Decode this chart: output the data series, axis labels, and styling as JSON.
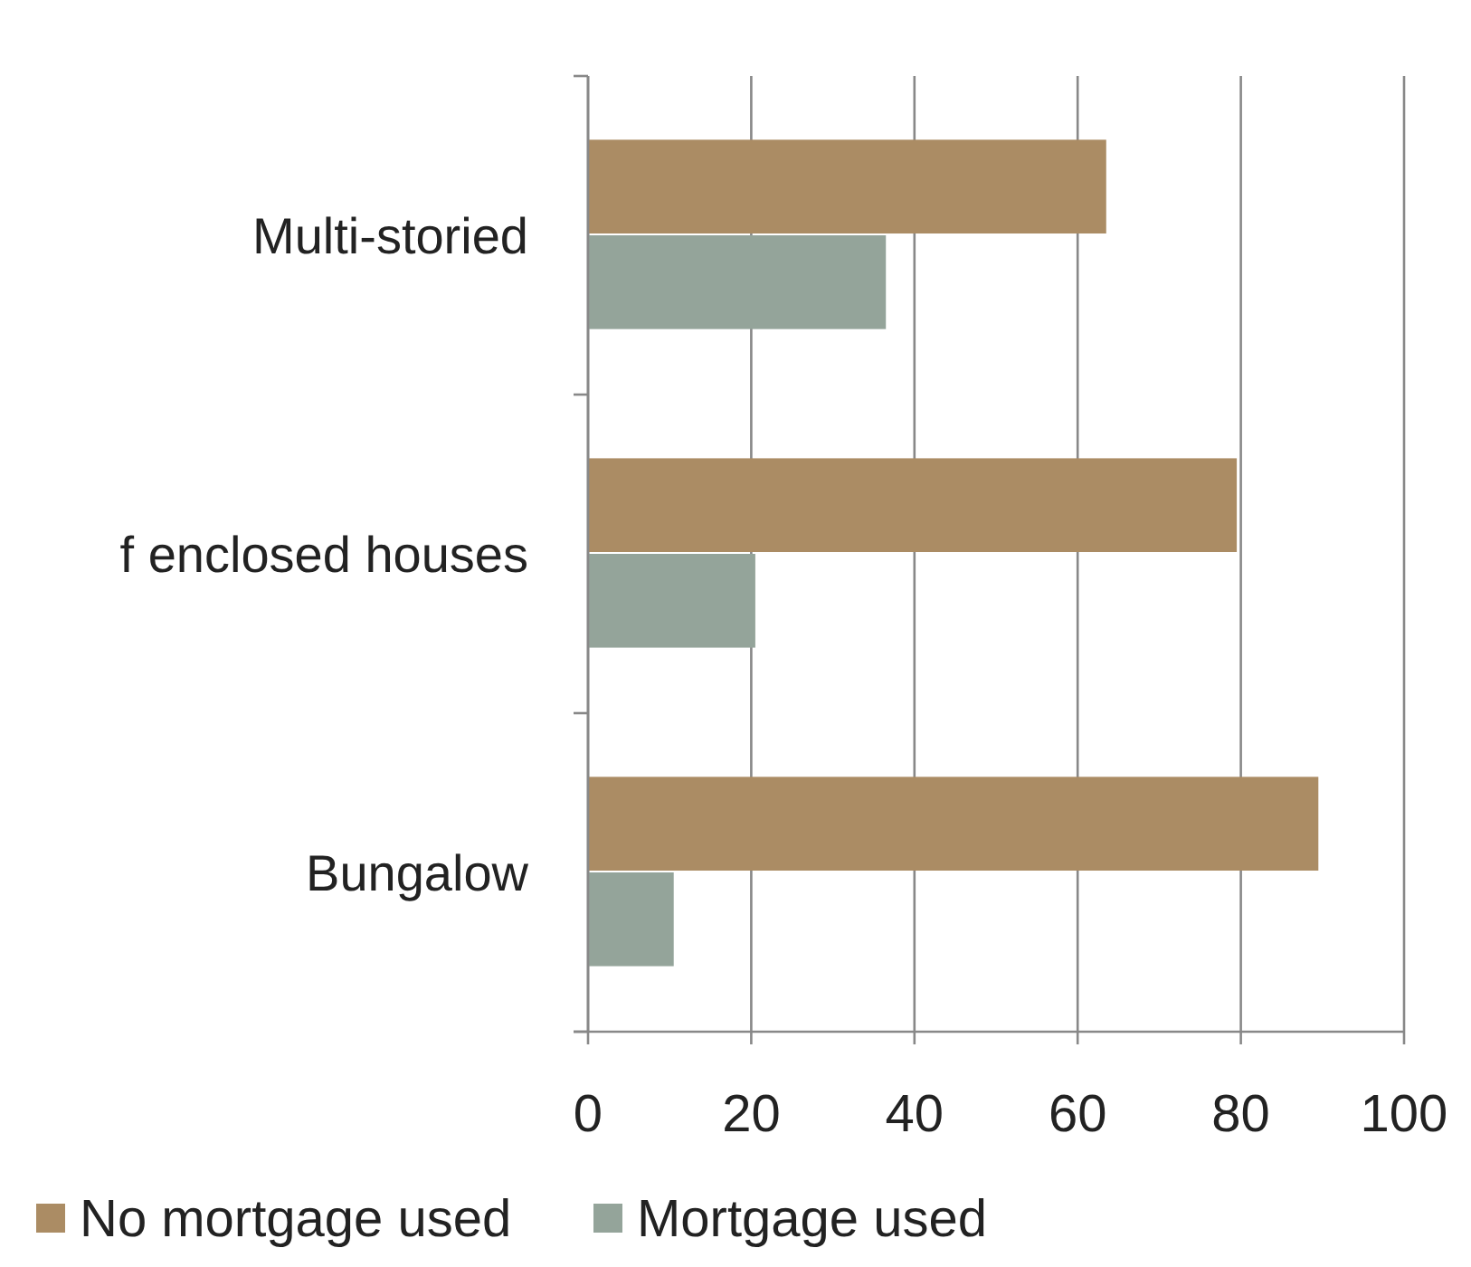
{
  "chart_data": {
    "type": "bar",
    "orientation": "horizontal",
    "categories": [
      "Multi-storied",
      "f enclosed houses",
      "Bungalow"
    ],
    "series": [
      {
        "name": "No mortgage used",
        "color": "#ab8c64",
        "values": [
          63.5,
          79.5,
          89.5
        ]
      },
      {
        "name": "Mortgage used",
        "color": "#94a49a",
        "values": [
          36.5,
          20.5,
          10.5
        ]
      }
    ],
    "xlim": [
      0,
      100
    ],
    "xticks": [
      0,
      20,
      40,
      60,
      80,
      100
    ],
    "grid": "x",
    "legend": "bottom"
  }
}
